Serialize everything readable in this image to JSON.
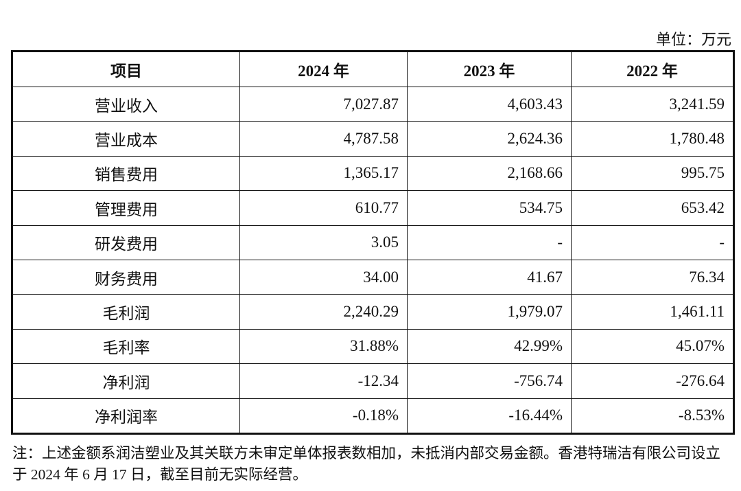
{
  "unit": "单位：万元",
  "table": {
    "headers": [
      "项目",
      "2024 年",
      "2023 年",
      "2022 年"
    ],
    "rows": [
      [
        "营业收入",
        "7,027.87",
        "4,603.43",
        "3,241.59"
      ],
      [
        "营业成本",
        "4,787.58",
        "2,624.36",
        "1,780.48"
      ],
      [
        "销售费用",
        "1,365.17",
        "2,168.66",
        "995.75"
      ],
      [
        "管理费用",
        "610.77",
        "534.75",
        "653.42"
      ],
      [
        "研发费用",
        "3.05",
        "-",
        "-"
      ],
      [
        "财务费用",
        "34.00",
        "41.67",
        "76.34"
      ],
      [
        "毛利润",
        "2,240.29",
        "1,979.07",
        "1,461.11"
      ],
      [
        "毛利率",
        "31.88%",
        "42.99%",
        "45.07%"
      ],
      [
        "净利润",
        "-12.34",
        "-756.74",
        "-276.64"
      ],
      [
        "净利润率",
        "-0.18%",
        "-16.44%",
        "-8.53%"
      ]
    ]
  },
  "note": "注：上述金额系润洁塑业及其关联方未审定单体报表数相加，未抵消内部交易金额。香港特瑞洁有限公司设立于 2024 年 6 月 17 日，截至目前无实际经营。"
}
